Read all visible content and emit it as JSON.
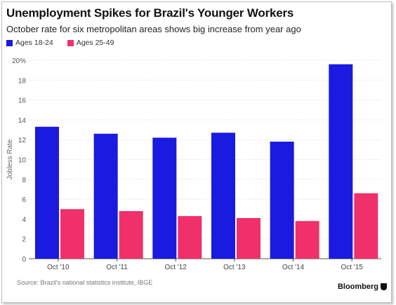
{
  "header": {
    "title": "Unemployment Spikes for Brazil's Younger Workers",
    "subtitle": "October rate for six metropolitan areas shows big increase from year ago"
  },
  "footer": {
    "source": "Source: Brazil's national statistics institute, IBGE",
    "brand": "Bloomberg"
  },
  "colors": {
    "series1": "#1a1ae0",
    "series2": "#f0306a",
    "grid": "#d9d9d9",
    "axis": "#555555"
  },
  "chart_data": {
    "type": "bar",
    "title": "Unemployment Spikes for Brazil's Younger Workers",
    "subtitle": "October rate for six metropolitan areas shows big increase from year ago",
    "categories": [
      "Oct '10",
      "Oct '11",
      "Oct '12",
      "Oct '13",
      "Oct '14",
      "Oct '15"
    ],
    "series": [
      {
        "name": "Ages 18-24",
        "values": [
          13.3,
          12.6,
          12.2,
          12.7,
          11.8,
          19.6
        ]
      },
      {
        "name": "Ages 25-49",
        "values": [
          5.0,
          4.8,
          4.3,
          4.1,
          3.8,
          6.6
        ]
      }
    ],
    "ylabel": "Jobless Rate",
    "xlabel": "",
    "ylim": [
      0,
      20
    ],
    "yticks": [
      "0",
      "2",
      "4",
      "6",
      "8",
      "10",
      "12",
      "14",
      "16",
      "18",
      "20%"
    ],
    "grid": true,
    "legend_position": "top-left"
  }
}
